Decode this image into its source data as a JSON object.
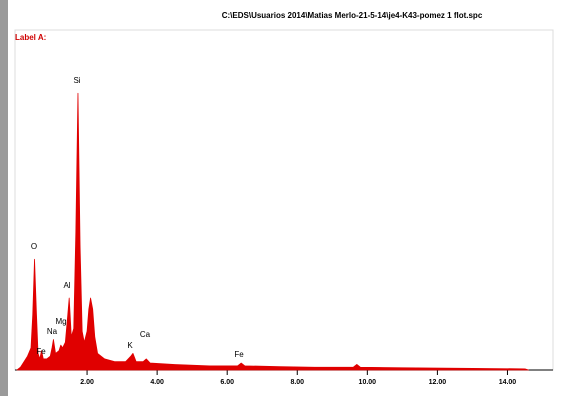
{
  "chart_data": {
    "type": "area",
    "title": "C:\\EDS\\Usuarios 2014\\Matias Merlo-21-5-14\\je4-K43-pomez 1 flot.spc",
    "subtitle": "Label A:",
    "color": "#e00000",
    "x": [
      0.0,
      0.1,
      0.2,
      0.3,
      0.4,
      0.45,
      0.5,
      0.55,
      0.6,
      0.65,
      0.7,
      0.75,
      0.85,
      0.95,
      1.0,
      1.04,
      1.1,
      1.2,
      1.25,
      1.3,
      1.38,
      1.45,
      1.49,
      1.55,
      1.62,
      1.68,
      1.74,
      1.8,
      1.86,
      1.92,
      2.0,
      2.05,
      2.1,
      2.16,
      2.22,
      2.3,
      2.5,
      2.8,
      3.1,
      3.25,
      3.31,
      3.4,
      3.6,
      3.69,
      3.8,
      4.5,
      5.5,
      6.3,
      6.4,
      6.5,
      7.5,
      8.5,
      9.6,
      9.7,
      9.8,
      11.0,
      13.0,
      14.5,
      14.6
    ],
    "values": [
      0,
      1,
      3,
      5,
      8,
      20,
      40,
      22,
      6,
      4,
      7,
      4,
      4,
      5,
      8,
      11,
      6,
      7,
      9,
      8,
      10,
      20,
      26,
      12,
      15,
      50,
      100,
      45,
      14,
      10,
      14,
      22,
      26,
      22,
      12,
      6,
      4,
      3,
      3,
      5,
      6,
      3,
      3,
      4,
      2.5,
      2,
      1.5,
      1.5,
      2.5,
      1.5,
      1.2,
      1,
      1,
      2,
      1,
      0.8,
      0.6,
      0.4,
      0
    ],
    "peak_labels": [
      "O",
      "Fe",
      "Na",
      "Mg",
      "Al",
      "Si",
      "K",
      "Ca",
      "Fe"
    ],
    "xlim": [
      0,
      15.3
    ],
    "ylim": [
      0,
      120
    ],
    "xticks": [
      {
        "value": 2,
        "label": "2.00"
      },
      {
        "value": 4,
        "label": "4.00"
      },
      {
        "value": 6,
        "label": "6.00"
      },
      {
        "value": 8,
        "label": "8.00"
      },
      {
        "value": 10,
        "label": "10.00"
      },
      {
        "value": 12,
        "label": "12.00"
      },
      {
        "value": 14,
        "label": "14.00"
      }
    ]
  }
}
